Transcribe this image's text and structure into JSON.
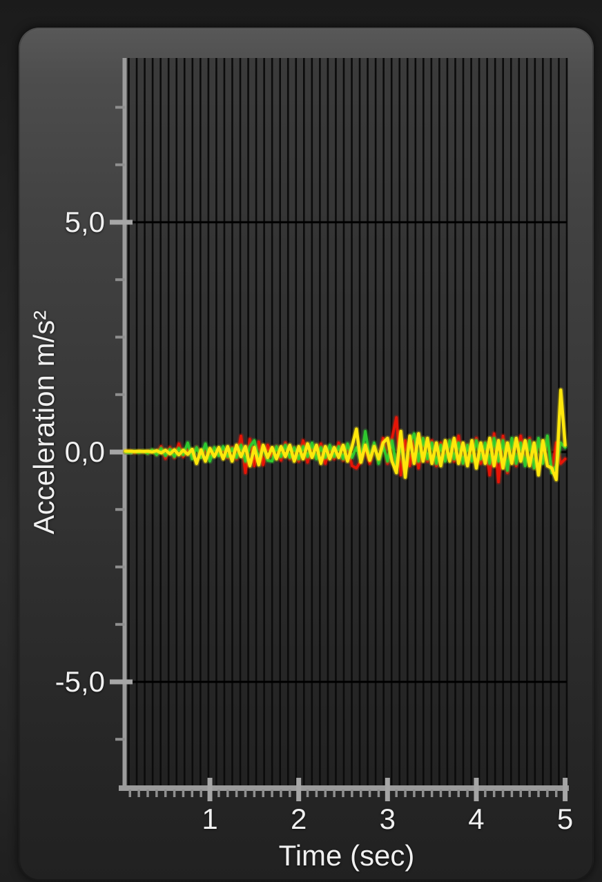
{
  "colors": {
    "axis": "#9b9b9b",
    "tick_minor": "#8f8f8f",
    "tick_major": "#a6a6a6",
    "label_text": "#f0f0f0",
    "gridline": "#0b0b0b",
    "guide_line": "#000000",
    "series_red": "#e41507",
    "series_green": "#2fc72f",
    "series_yellow": "#ffe70c"
  },
  "chart_data": {
    "type": "line",
    "title": "",
    "xlabel": "Time (sec)",
    "ylabel": "Acceleration m/s²",
    "unit": "m/s²",
    "xlim": [
      0,
      5
    ],
    "ylim_visible": [
      -7.3,
      8.6
    ],
    "grid": "dense vertical dark stripes; horizontal black lines at +5 and -5",
    "legend": "none",
    "x_ticks": [
      {
        "label": "1",
        "value": 1
      },
      {
        "label": "2",
        "value": 2
      },
      {
        "label": "3",
        "value": 3
      },
      {
        "label": "4",
        "value": 4
      },
      {
        "label": "5",
        "value": 5
      }
    ],
    "x_minor_tick_step": 0.1,
    "y_ticks": [
      {
        "label": "5,0",
        "value": 5
      },
      {
        "label": "0,0",
        "value": 0
      },
      {
        "label": "-5,0",
        "value": -5
      }
    ],
    "y_minor_ticks": [
      7.5,
      6.25,
      3.75,
      2.5,
      1.25,
      -1.25,
      -2.5,
      -3.75,
      -6.25
    ],
    "t_start": 0.05,
    "t_step": 0.05,
    "series": [
      {
        "name": "red",
        "color": "#e41507",
        "values": [
          0.0,
          0.01,
          -0.01,
          0.0,
          0.01,
          -0.02,
          0.03,
          -0.05,
          0.12,
          -0.14,
          0.1,
          -0.12,
          0.18,
          -0.1,
          0.05,
          -0.08,
          0.1,
          -0.06,
          0.04,
          -0.1,
          0.08,
          -0.05,
          0.06,
          -0.12,
          0.1,
          -0.15,
          0.35,
          -0.45,
          0.28,
          -0.3,
          0.22,
          -0.28,
          0.15,
          -0.1,
          0.12,
          -0.18,
          0.2,
          -0.15,
          0.1,
          -0.2,
          0.25,
          -0.22,
          0.15,
          -0.12,
          0.18,
          -0.25,
          0.12,
          -0.15,
          0.2,
          -0.18,
          0.15,
          -0.3,
          -0.35,
          -0.2,
          0.1,
          -0.25,
          0.15,
          -0.2,
          0.3,
          -0.25,
          0.3,
          0.75,
          -0.5,
          0.25,
          -0.3,
          0.25,
          -0.35,
          0.3,
          -0.2,
          0.25,
          -0.3,
          0.2,
          -0.15,
          0.25,
          -0.2,
          0.35,
          -0.25,
          0.15,
          -0.2,
          0.3,
          -0.25,
          0.2,
          -0.5,
          0.4,
          -0.65,
          0.35,
          -0.45,
          0.25,
          -0.3,
          0.35,
          -0.25,
          0.3,
          -0.35,
          0.25,
          -0.2,
          0.3,
          -0.4,
          0.2,
          -0.25,
          -0.15
        ]
      },
      {
        "name": "green",
        "color": "#2fc72f",
        "values": [
          0.0,
          -0.01,
          0.01,
          -0.01,
          0.02,
          -0.03,
          0.05,
          -0.06,
          0.08,
          -0.08,
          0.06,
          -0.1,
          0.08,
          -0.06,
          0.2,
          -0.15,
          0.1,
          -0.12,
          0.18,
          -0.2,
          0.1,
          -0.08,
          0.12,
          -0.1,
          0.08,
          -0.12,
          0.15,
          -0.2,
          0.12,
          0.25,
          -0.15,
          0.1,
          -0.18,
          -0.2,
          0.12,
          -0.1,
          0.15,
          -0.12,
          0.1,
          -0.15,
          0.12,
          -0.1,
          0.2,
          -0.15,
          0.1,
          -0.12,
          0.15,
          -0.1,
          0.12,
          -0.15,
          0.18,
          -0.12,
          0.1,
          -0.2,
          0.45,
          -0.15,
          0.2,
          -0.25,
          0.15,
          -0.2,
          0.25,
          -0.3,
          0.15,
          -0.35,
          0.2,
          0.4,
          -0.2,
          0.3,
          -0.15,
          0.2,
          -0.25,
          0.15,
          -0.2,
          0.25,
          -0.15,
          0.2,
          -0.25,
          0.15,
          -0.2,
          0.25,
          -0.15,
          0.2,
          -0.25,
          0.3,
          -0.2,
          0.25,
          -0.4,
          0.3,
          -0.25,
          0.2,
          -0.3,
          0.25,
          -0.35,
          0.3,
          -0.25,
          0.35,
          -0.45,
          -0.3,
          0.2,
          0.1
        ]
      },
      {
        "name": "yellow",
        "color": "#ffe70c",
        "values": [
          0.02,
          0.02,
          0.01,
          0.02,
          0.01,
          0.02,
          0.0,
          0.03,
          -0.02,
          0.04,
          -0.04,
          0.05,
          -0.06,
          0.04,
          -0.05,
          0.06,
          -0.25,
          0.05,
          -0.2,
          0.08,
          -0.1,
          0.1,
          -0.15,
          0.12,
          -0.2,
          0.15,
          -0.1,
          0.12,
          -0.3,
          0.1,
          -0.28,
          0.15,
          -0.12,
          0.1,
          -0.15,
          0.12,
          -0.1,
          0.15,
          -0.2,
          0.12,
          -0.15,
          0.18,
          -0.12,
          0.15,
          -0.25,
          0.12,
          -0.15,
          0.1,
          -0.12,
          0.15,
          -0.2,
          0.12,
          0.5,
          -0.22,
          0.15,
          -0.18,
          0.12,
          -0.15,
          0.2,
          0.3,
          -0.2,
          -0.45,
          0.45,
          -0.55,
          0.35,
          -0.25,
          0.4,
          -0.2,
          0.3,
          -0.25,
          0.2,
          -0.3,
          0.25,
          -0.2,
          0.3,
          -0.25,
          0.2,
          -0.3,
          0.25,
          -0.35,
          0.2,
          -0.25,
          0.3,
          -0.3,
          0.25,
          -0.35,
          0.2,
          -0.25,
          0.3,
          -0.2,
          0.25,
          -0.3,
          0.2,
          -0.5,
          0.25,
          -0.3,
          -0.35,
          -0.6,
          1.35,
          0.15
        ]
      }
    ]
  }
}
